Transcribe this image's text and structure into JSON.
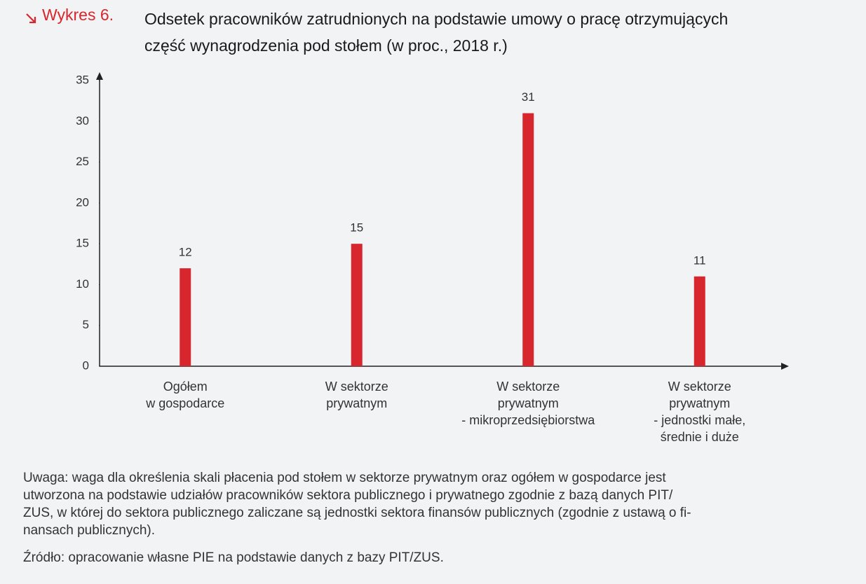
{
  "chart_data": {
    "type": "bar",
    "label": "Wykres 6.",
    "title": "Odsetek pracowników zatrudnionych na podstawie umowy o pracę otrzymujących\nczęść wynagrodzenia pod stołem (w proc., 2018 r.)",
    "categories": [
      "Ogółem\nw gospodarce",
      "W sektorze\nprywatnym",
      "W sektorze\nprywatnym\n- mikroprzedsiębiorstwa",
      "W sektorze\nprywatnym\n- jednostki małe,\nśrednie i duże"
    ],
    "values": [
      12,
      15,
      31,
      11
    ],
    "color": "#d8262f",
    "ylim": [
      0,
      35
    ],
    "yticks": [
      0,
      5,
      10,
      15,
      20,
      25,
      30,
      35
    ],
    "note": "Uwaga: waga dla określenia skali płacenia pod stołem w sektorze prywatnym oraz ogółem w gospodarce jest\nutworzona na podstawie udziałów pracowników sektora publicznego i prywatnego zgodnie z bazą danych PIT/\nZUS, w której do sektora publicznego zaliczane są jednostki sektora finansów publicznych (zgodnie z ustawą o fi-\nnansach publicznych).",
    "source": "Źródło: opracowanie własne PIE na podstawie danych z bazy PIT/ZUS."
  }
}
